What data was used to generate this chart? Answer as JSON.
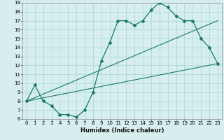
{
  "title": "",
  "xlabel": "Humidex (Indice chaleur)",
  "bg_color": "#d6eeee",
  "grid_color": "#afd8d8",
  "line_color": "#1a7a6a",
  "xlim": [
    -0.5,
    23.5
  ],
  "ylim": [
    6,
    19
  ],
  "xticks": [
    0,
    1,
    2,
    3,
    4,
    5,
    6,
    7,
    8,
    9,
    10,
    11,
    12,
    13,
    14,
    15,
    16,
    17,
    18,
    19,
    20,
    21,
    22,
    23
  ],
  "yticks": [
    6,
    7,
    8,
    9,
    10,
    11,
    12,
    13,
    14,
    15,
    16,
    17,
    18,
    19
  ],
  "curve1_x": [
    0,
    1,
    2,
    3,
    4,
    5,
    6,
    7,
    8,
    9,
    10,
    11,
    12,
    13,
    14,
    15,
    16,
    17,
    18,
    19,
    20,
    21,
    22,
    23
  ],
  "curve1_y": [
    8,
    9.8,
    8,
    7.5,
    6.5,
    6.5,
    6.2,
    7,
    9,
    12.5,
    14.5,
    17,
    17,
    16.5,
    17,
    18.2,
    19,
    18.5,
    17.5,
    17,
    17,
    15,
    14,
    12.2
  ],
  "curve2_x": [
    0,
    23
  ],
  "curve2_y": [
    8,
    12.2
  ],
  "curve3_x": [
    0,
    23
  ],
  "curve3_y": [
    8,
    17
  ],
  "font_size": 5.5,
  "tick_font_size": 5.0,
  "xlabel_fontsize": 6.0
}
